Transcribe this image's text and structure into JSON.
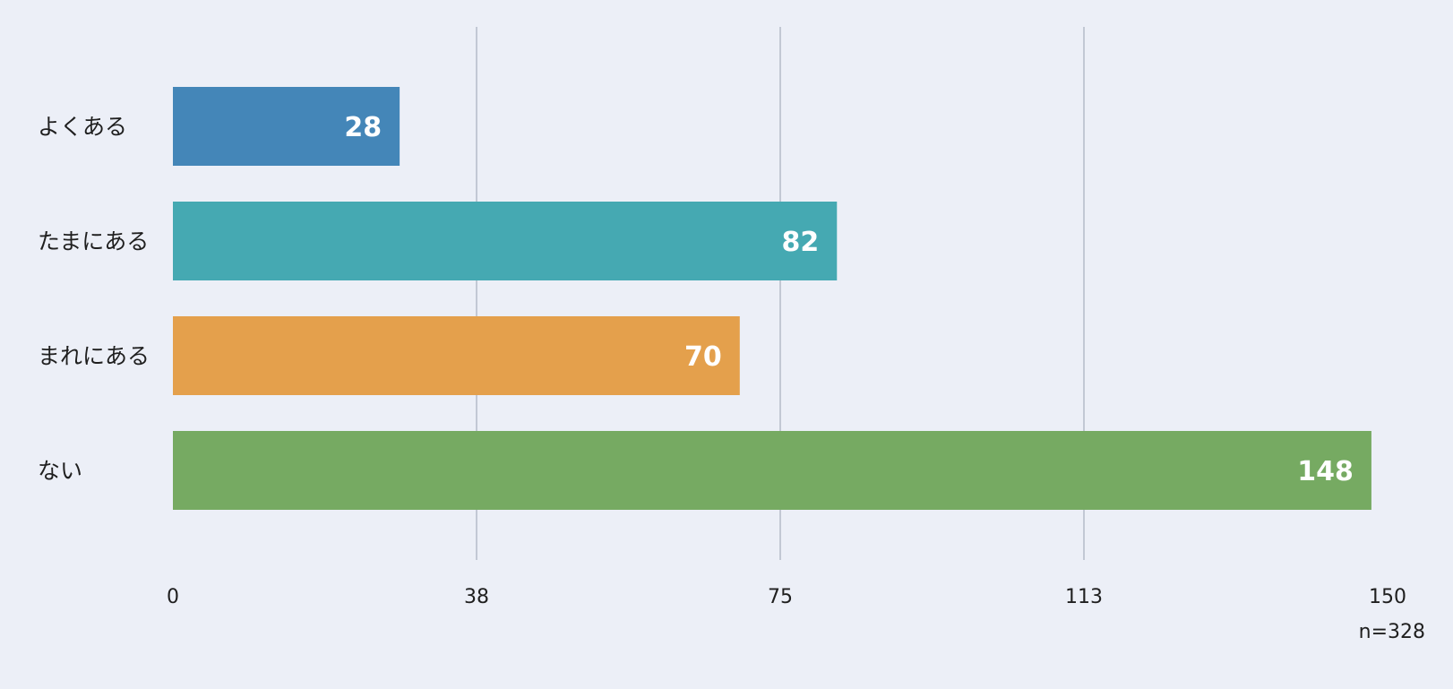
{
  "chart_data": {
    "type": "bar",
    "orientation": "horizontal",
    "categories": [
      "よくある",
      "たまにある",
      "まれにある",
      "ない"
    ],
    "values": [
      28,
      82,
      70,
      148
    ],
    "colors": [
      "#4486B8",
      "#45A9B2",
      "#E4A04C",
      "#76AA62"
    ],
    "xlim": [
      0,
      150
    ],
    "xticks": [
      "0",
      "38",
      "75",
      "113",
      "150"
    ],
    "grid": true,
    "note": "n=328"
  }
}
